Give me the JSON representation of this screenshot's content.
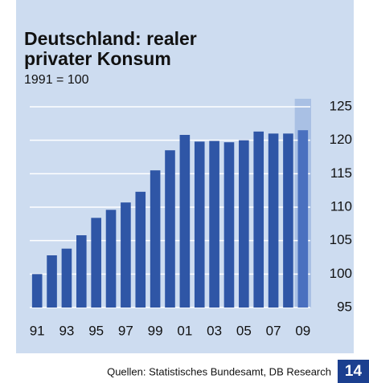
{
  "chart_data": {
    "type": "bar",
    "title": [
      "Deutschland: realer",
      "privater Konsum"
    ],
    "subtitle": "1991 = 100",
    "categories": [
      "91",
      null,
      "93",
      null,
      "95",
      null,
      "97",
      null,
      "99",
      null,
      "01",
      null,
      "03",
      null,
      "05",
      null,
      "07",
      null,
      "09"
    ],
    "values": [
      100,
      102.8,
      103.8,
      105.8,
      108.4,
      109.6,
      110.7,
      112.3,
      115.5,
      118.5,
      120.8,
      119.8,
      119.9,
      119.7,
      120,
      121.3,
      121,
      121,
      121.5
    ],
    "color": "#2f56a6",
    "highlight": "09",
    "ylim": [
      95,
      125
    ],
    "yticks": [
      95,
      100,
      105,
      110,
      115,
      120,
      125
    ],
    "grid": true,
    "source": "Quellen: Statistisches Bundesamt, DB Research",
    "page_number": "14"
  }
}
